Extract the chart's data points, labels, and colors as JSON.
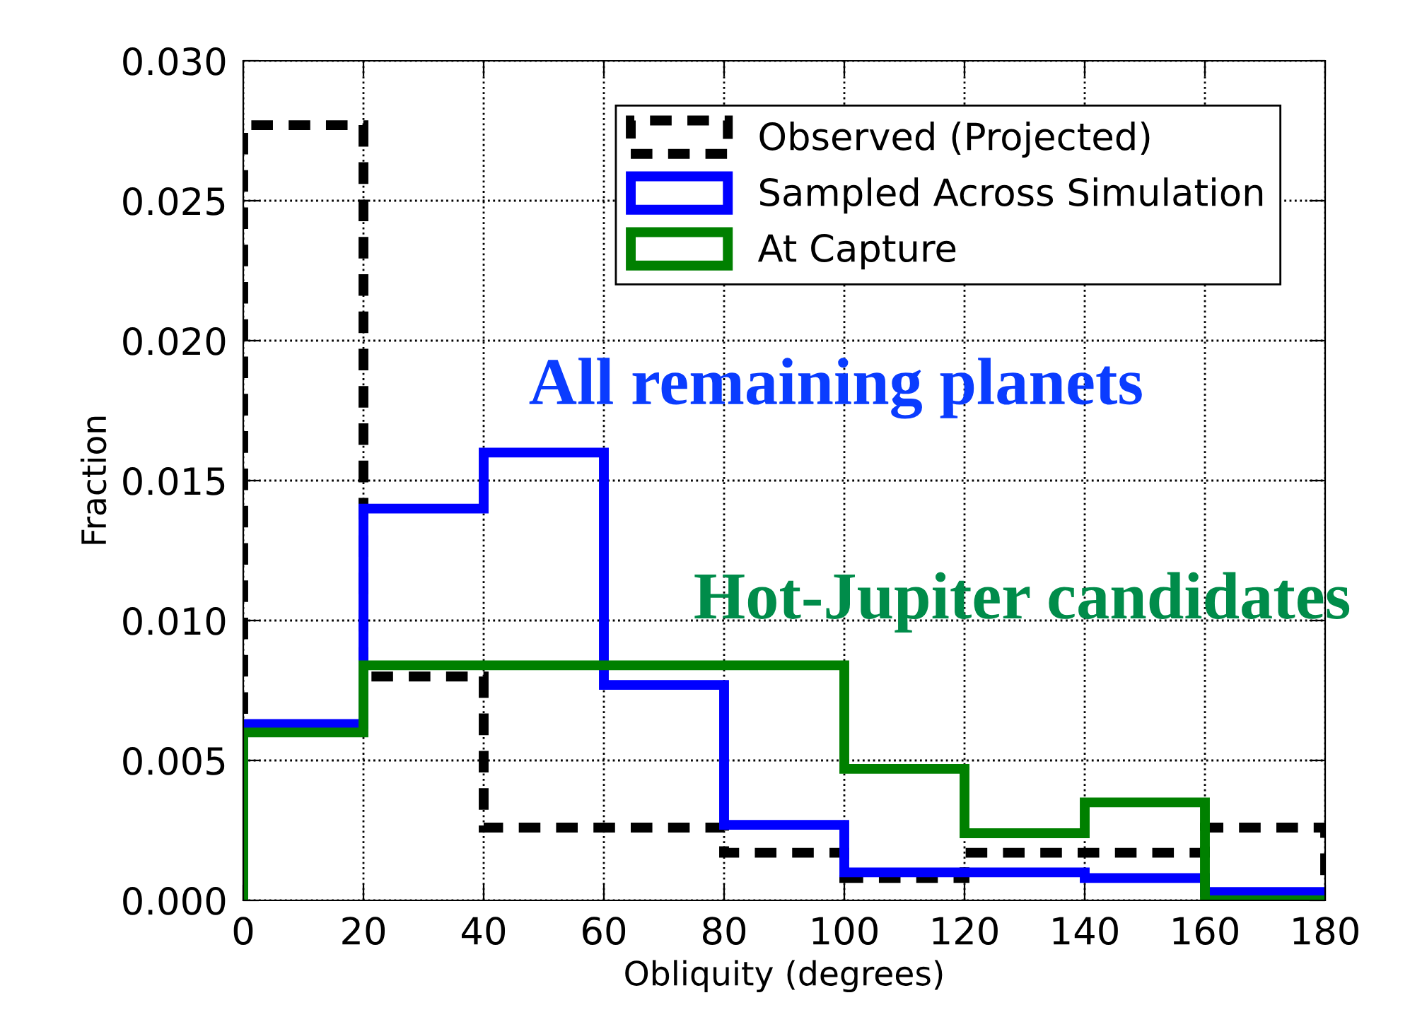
{
  "chart_data": {
    "type": "histogram",
    "xlabel": "Obliquity (degrees)",
    "ylabel": "Fraction",
    "bins": [
      0,
      20,
      40,
      60,
      80,
      100,
      120,
      140,
      160,
      180
    ],
    "series": [
      {
        "name": "Observed (Projected)",
        "color": "#000000",
        "line_style": "dashed",
        "values": [
          0.0277,
          0.008,
          0.0026,
          0.0026,
          0.0017,
          0.0008,
          0.0017,
          0.0017,
          0.0026
        ]
      },
      {
        "name": "Sampled Across Simulation",
        "color": "#0000ff",
        "line_style": "solid",
        "values": [
          0.0063,
          0.014,
          0.016,
          0.0077,
          0.0027,
          0.001,
          0.001,
          0.0008,
          0.0003
        ]
      },
      {
        "name": "At Capture",
        "color": "#008000",
        "line_style": "solid",
        "values": [
          0.006,
          0.0084,
          0.0084,
          0.0084,
          0.0084,
          0.0047,
          0.0024,
          0.0035,
          0
        ]
      }
    ],
    "annotations": [
      "All remaining planets",
      "Hot-Jupiter candidates"
    ],
    "xlim": [
      0,
      180
    ],
    "xticks": [
      0,
      20,
      40,
      60,
      80,
      100,
      120,
      140,
      160,
      180
    ],
    "ylim": [
      0,
      0.03
    ],
    "yticks": [
      {
        "value": 0,
        "label": "0.000"
      },
      {
        "value": 0.005,
        "label": "0.005"
      },
      {
        "value": 0.01,
        "label": "0.010"
      },
      {
        "value": 0.015,
        "label": "0.015"
      },
      {
        "value": 0.02,
        "label": "0.020"
      },
      {
        "value": 0.025,
        "label": "0.025"
      },
      {
        "value": 0.03,
        "label": "0.030"
      }
    ],
    "grid": true,
    "legend": "top right"
  }
}
